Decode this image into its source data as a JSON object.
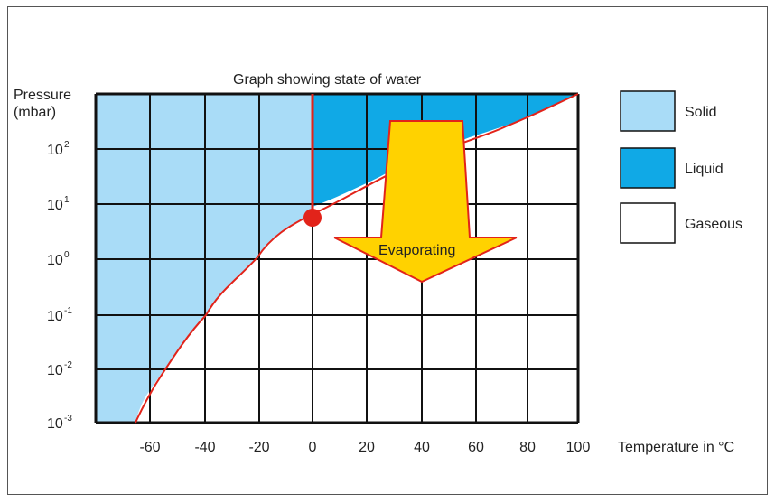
{
  "title": "Graph showing state of water",
  "y_axis": {
    "label_line1": "Pressure",
    "label_line2": "(mbar)"
  },
  "x_axis": {
    "label": "Temperature in °C"
  },
  "x_ticks": [
    "-60",
    "-40",
    "-20",
    "0",
    "20",
    "40",
    "60",
    "80",
    "100"
  ],
  "y_ticks": [
    {
      "base": "10",
      "exp": "2"
    },
    {
      "base": "10",
      "exp": "1"
    },
    {
      "base": "10",
      "exp": "0"
    },
    {
      "base": "10",
      "exp": "-1"
    },
    {
      "base": "10",
      "exp": "-2"
    },
    {
      "base": "10",
      "exp": "-3"
    }
  ],
  "legend": [
    {
      "label": "Solid",
      "color": "#a9dcf7"
    },
    {
      "label": "Liquid",
      "color": "#10a9e6"
    },
    {
      "label": "Gaseous",
      "color": "#ffffff"
    }
  ],
  "arrow_label": "Evaporating",
  "colors": {
    "solid": "#a9dcf7",
    "liquid": "#10a9e6",
    "boundary": "#e2231a",
    "arrow_fill": "#ffd200",
    "arrow_stroke": "#e2231a",
    "grid": "#111111"
  }
}
